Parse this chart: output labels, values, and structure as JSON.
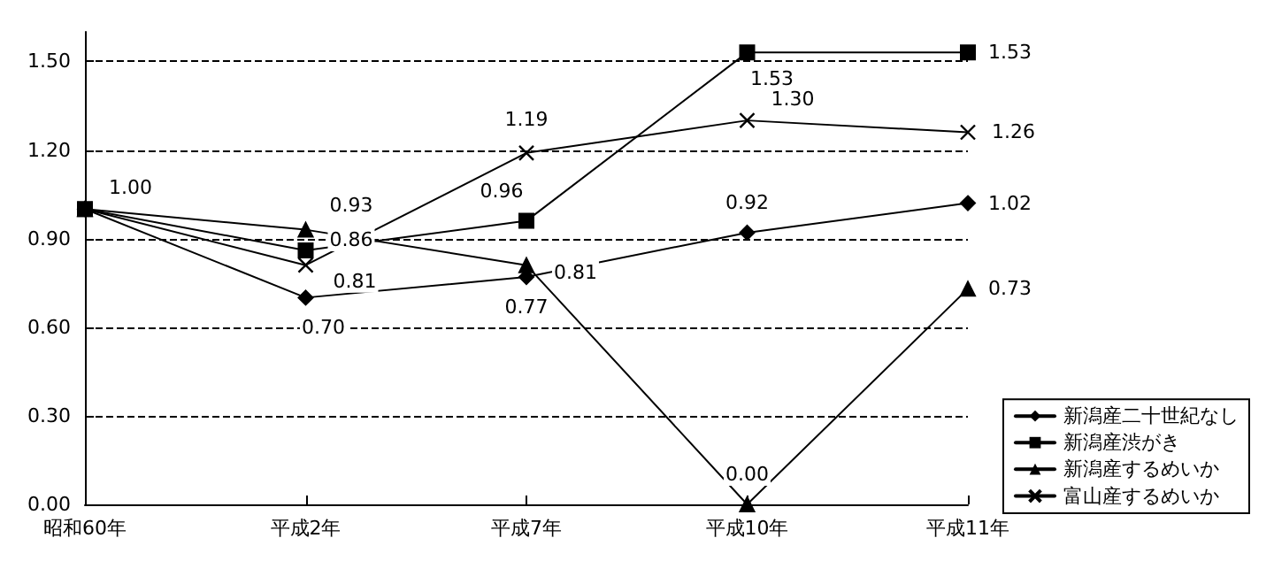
{
  "chart_data": {
    "type": "line",
    "categories": [
      "昭和60年",
      "平成2年",
      "平成7年",
      "平成10年",
      "平成11年"
    ],
    "series": [
      {
        "name": "新潟産二十世紀なし",
        "color": "#000000",
        "marker": "diamond",
        "values": [
          1.0,
          0.7,
          0.77,
          0.92,
          1.02
        ],
        "value_labels": [
          "1.00",
          "0.70",
          "0.77",
          "0.92",
          "1.02"
        ]
      },
      {
        "name": "新潟産渋がき",
        "color": "#000000",
        "marker": "square",
        "values": [
          1.0,
          0.86,
          0.96,
          1.53,
          1.53
        ],
        "value_labels": [
          null,
          "0.86",
          "0.96",
          "1.53",
          "1.53"
        ]
      },
      {
        "name": "新潟産するめいか",
        "color": "#000000",
        "marker": "triangle",
        "values": [
          1.0,
          0.93,
          0.81,
          0.0,
          0.73
        ],
        "value_labels": [
          null,
          "0.93",
          "0.81",
          "0.00",
          "0.73"
        ]
      },
      {
        "name": "富山産するめいか",
        "color": "#000000",
        "marker": "cross",
        "values": [
          1.0,
          0.81,
          1.19,
          1.3,
          1.26
        ],
        "value_labels": [
          null,
          "0.81",
          "1.19",
          "1.30",
          "1.26"
        ]
      }
    ],
    "ylim": [
      0,
      1.6
    ],
    "yticks": [
      {
        "value": 0,
        "label": "0.00"
      },
      {
        "value": 0.3,
        "label": "0.30"
      },
      {
        "value": 0.6,
        "label": "0.60"
      },
      {
        "value": 0.9,
        "label": "0.90"
      },
      {
        "value": 1.2,
        "label": "1.20"
      },
      {
        "value": 1.5,
        "label": "1.50"
      }
    ],
    "grid": "y",
    "legend": "bottom right",
    "line_style": "solid"
  }
}
